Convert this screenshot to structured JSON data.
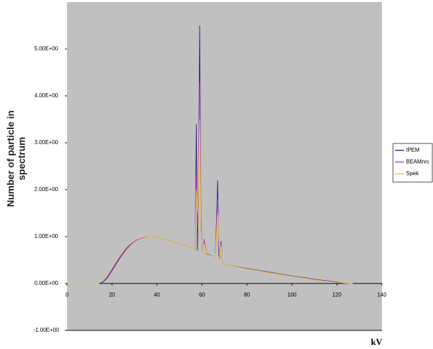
{
  "chart_data": {
    "type": "line",
    "ylabel": "Number of particle in spectrum",
    "xlabel": "kV",
    "x": [
      0,
      10,
      14,
      16,
      18,
      20,
      22,
      24,
      26,
      28,
      30,
      32,
      34,
      36,
      38,
      40,
      45,
      50,
      55,
      57,
      57.5,
      58,
      58.5,
      59,
      59.5,
      60,
      60.5,
      61,
      62,
      66,
      67,
      67.5,
      68,
      68.5,
      69,
      69.5,
      70,
      80,
      90,
      100,
      110,
      120,
      125,
      127
    ],
    "series": [
      {
        "name": "IPEM",
        "color": "#2e2e8c",
        "values": [
          0,
          0,
          0,
          0.03,
          0.12,
          0.27,
          0.43,
          0.58,
          0.71,
          0.82,
          0.9,
          0.95,
          0.98,
          1.0,
          1.0,
          0.98,
          0.92,
          0.85,
          0.77,
          0.72,
          3.4,
          0.7,
          2.5,
          5.5,
          1.5,
          0.7,
          0.67,
          0.9,
          0.63,
          0.57,
          2.2,
          0.6,
          0.55,
          0.9,
          0.45,
          0.42,
          0.4,
          0.32,
          0.24,
          0.16,
          0.09,
          0.03,
          0,
          0
        ]
      },
      {
        "name": "BEAMnrc",
        "color": "#c63ccf",
        "values": [
          0,
          0,
          0,
          0.05,
          0.15,
          0.3,
          0.46,
          0.6,
          0.73,
          0.83,
          0.9,
          0.95,
          0.98,
          1.0,
          1.0,
          0.98,
          0.92,
          0.85,
          0.77,
          0.72,
          2.3,
          1.2,
          2.7,
          4.3,
          1.3,
          0.7,
          0.66,
          0.95,
          0.62,
          0.57,
          1.8,
          0.9,
          0.55,
          0.85,
          0.45,
          0.42,
          0.4,
          0.31,
          0.23,
          0.15,
          0.08,
          0.02,
          0,
          0
        ]
      },
      {
        "name": "Spek",
        "color": "#f0c53c",
        "values": [
          0,
          0,
          0,
          0.06,
          0.18,
          0.34,
          0.5,
          0.64,
          0.76,
          0.85,
          0.92,
          0.96,
          0.99,
          1.0,
          1.0,
          0.98,
          0.92,
          0.85,
          0.77,
          0.72,
          2.0,
          1.5,
          2.3,
          3.5,
          1.2,
          0.7,
          0.66,
          0.85,
          0.62,
          0.57,
          1.5,
          1.0,
          0.55,
          0.8,
          0.45,
          0.42,
          0.4,
          0.31,
          0.23,
          0.15,
          0.08,
          0.02,
          0.01,
          0
        ]
      }
    ],
    "xlim": [
      0,
      140
    ],
    "xticks": [
      0,
      20,
      40,
      60,
      80,
      100,
      120,
      140
    ],
    "ylim": [
      -1,
      6
    ],
    "yticks": [
      {
        "value": -1,
        "label": "-1.00E+00"
      },
      {
        "value": 0,
        "label": "0.00E+00"
      },
      {
        "value": 1,
        "label": "1.00E+00"
      },
      {
        "value": 2,
        "label": "2.00E+00"
      },
      {
        "value": 3,
        "label": "3.00E+00"
      },
      {
        "value": 4,
        "label": "4.00E+00"
      },
      {
        "value": 5,
        "label": "5.00E+00"
      }
    ],
    "plot_background": "#c0c0c0",
    "legend": "right"
  }
}
